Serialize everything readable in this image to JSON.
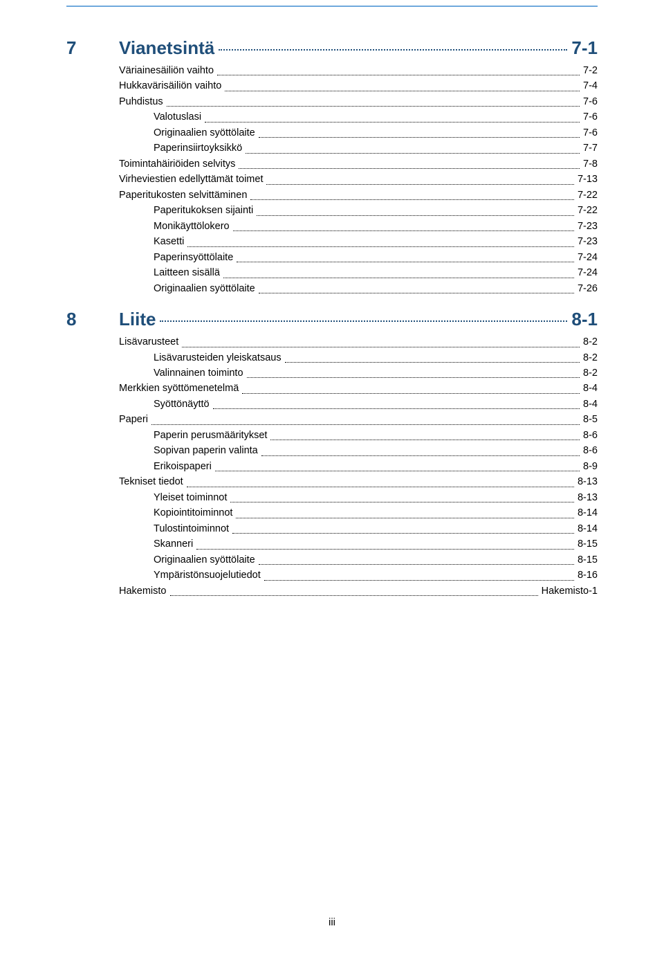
{
  "page_number": "iii",
  "colors": {
    "heading": "#1f4e79",
    "top_rule": "#6fa8dc",
    "body_text": "#000000",
    "background": "#ffffff"
  },
  "typography": {
    "heading_fontsize_pt": 20,
    "body_fontsize_pt": 11,
    "font_family": "Arial"
  },
  "sections": [
    {
      "num": "7",
      "title": "Vianetsintä",
      "page": "7-1",
      "items": [
        {
          "indent": 1,
          "label": "Väriainesäiliön vaihto",
          "page": "7-2"
        },
        {
          "indent": 1,
          "label": "Hukkavärisäiliön vaihto",
          "page": "7-4"
        },
        {
          "indent": 1,
          "label": "Puhdistus",
          "page": "7-6"
        },
        {
          "indent": 2,
          "label": "Valotuslasi",
          "page": "7-6"
        },
        {
          "indent": 2,
          "label": "Originaalien syöttölaite",
          "page": "7-6"
        },
        {
          "indent": 2,
          "label": "Paperinsiirtoyksikkö",
          "page": "7-7"
        },
        {
          "indent": 1,
          "label": "Toimintahäiriöiden selvitys",
          "page": "7-8"
        },
        {
          "indent": 1,
          "label": "Virheviestien edellyttämät toimet",
          "page": "7-13"
        },
        {
          "indent": 1,
          "label": "Paperitukosten selvittäminen",
          "page": "7-22"
        },
        {
          "indent": 2,
          "label": "Paperitukoksen sijainti",
          "page": "7-22"
        },
        {
          "indent": 2,
          "label": "Monikäyttölokero",
          "page": "7-23"
        },
        {
          "indent": 2,
          "label": "Kasetti",
          "page": "7-23"
        },
        {
          "indent": 2,
          "label": "Paperinsyöttölaite",
          "page": "7-24"
        },
        {
          "indent": 2,
          "label": "Laitteen sisällä",
          "page": "7-24"
        },
        {
          "indent": 2,
          "label": "Originaalien syöttölaite",
          "page": "7-26"
        }
      ]
    },
    {
      "num": "8",
      "title": "Liite",
      "page": "8-1",
      "items": [
        {
          "indent": 1,
          "label": "Lisävarusteet",
          "page": "8-2"
        },
        {
          "indent": 2,
          "label": "Lisävarusteiden yleiskatsaus",
          "page": "8-2"
        },
        {
          "indent": 2,
          "label": "Valinnainen toiminto",
          "page": "8-2"
        },
        {
          "indent": 1,
          "label": "Merkkien syöttömenetelmä",
          "page": "8-4"
        },
        {
          "indent": 2,
          "label": "Syöttönäyttö",
          "page": "8-4"
        },
        {
          "indent": 1,
          "label": "Paperi",
          "page": "8-5"
        },
        {
          "indent": 2,
          "label": "Paperin perusmääritykset",
          "page": "8-6"
        },
        {
          "indent": 2,
          "label": "Sopivan paperin valinta",
          "page": "8-6"
        },
        {
          "indent": 2,
          "label": "Erikoispaperi",
          "page": "8-9"
        },
        {
          "indent": 1,
          "label": "Tekniset tiedot",
          "page": "8-13"
        },
        {
          "indent": 2,
          "label": "Yleiset toiminnot",
          "page": "8-13"
        },
        {
          "indent": 2,
          "label": "Kopiointitoiminnot",
          "page": "8-14"
        },
        {
          "indent": 2,
          "label": "Tulostintoiminnot",
          "page": "8-14"
        },
        {
          "indent": 2,
          "label": "Skanneri",
          "page": "8-15"
        },
        {
          "indent": 2,
          "label": "Originaalien syöttölaite",
          "page": "8-15"
        },
        {
          "indent": 2,
          "label": "Ympäristönsuojelutiedot",
          "page": "8-16"
        },
        {
          "indent": 1,
          "label": "Hakemisto",
          "page": "Hakemisto-1"
        }
      ]
    }
  ]
}
